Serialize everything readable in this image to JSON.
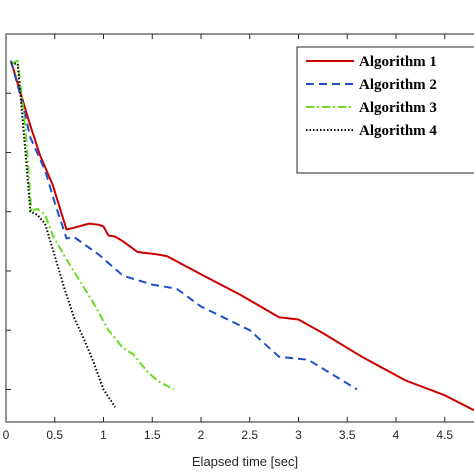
{
  "chart_data": {
    "type": "line",
    "title": "",
    "xlabel": "Elapsed time [sec]",
    "ylabel": "",
    "xlim": [
      0,
      4.8
    ],
    "x_ticks": [
      0,
      0.5,
      1,
      1.5,
      2,
      2.5,
      3,
      3.5,
      4,
      4.5
    ],
    "x_tick_labels": [
      "0",
      "0.5",
      "1",
      "1.5",
      "2",
      "2.5",
      "3",
      "3.5",
      "4",
      "4.5"
    ],
    "y_scale": "log",
    "ylim_decades": [
      -6,
      0
    ],
    "y_tick_decades": [
      -6,
      -5,
      -4,
      -3,
      -2,
      -1,
      0
    ],
    "grid": false,
    "legend_position": "top-right",
    "series": [
      {
        "name": "Algorithm 1",
        "color": "#cc0000",
        "dash": "solid",
        "points": [
          [
            0.05,
            -0.45
          ],
          [
            0.15,
            -1.0
          ],
          [
            0.25,
            -1.55
          ],
          [
            0.35,
            -2.05
          ],
          [
            0.48,
            -2.55
          ],
          [
            0.62,
            -3.3
          ],
          [
            0.7,
            -3.27
          ],
          [
            0.85,
            -3.2
          ],
          [
            0.95,
            -3.22
          ],
          [
            1.0,
            -3.25
          ],
          [
            1.05,
            -3.4
          ],
          [
            1.12,
            -3.42
          ],
          [
            1.2,
            -3.5
          ],
          [
            1.35,
            -3.68
          ],
          [
            1.55,
            -3.72
          ],
          [
            1.65,
            -3.75
          ],
          [
            2.05,
            -4.1
          ],
          [
            2.4,
            -4.4
          ],
          [
            2.8,
            -4.78
          ],
          [
            3.0,
            -4.82
          ],
          [
            3.25,
            -5.05
          ],
          [
            3.65,
            -5.45
          ],
          [
            4.1,
            -5.85
          ],
          [
            4.5,
            -6.1
          ],
          [
            4.8,
            -6.35
          ]
        ]
      },
      {
        "name": "Algorithm 2",
        "color": "#1f4fcc",
        "dash": "dashed",
        "points": [
          [
            0.05,
            -0.45
          ],
          [
            0.15,
            -1.05
          ],
          [
            0.25,
            -1.75
          ],
          [
            0.4,
            -2.3
          ],
          [
            0.5,
            -2.85
          ],
          [
            0.62,
            -3.45
          ],
          [
            0.7,
            -3.43
          ],
          [
            0.95,
            -3.72
          ],
          [
            1.2,
            -4.08
          ],
          [
            1.5,
            -4.23
          ],
          [
            1.75,
            -4.3
          ],
          [
            2.0,
            -4.6
          ],
          [
            2.5,
            -5.0
          ],
          [
            2.8,
            -5.45
          ],
          [
            3.1,
            -5.5
          ],
          [
            3.6,
            -6.0
          ]
        ]
      },
      {
        "name": "Algorithm 3",
        "color": "#66dd22",
        "dash": "dashdot",
        "points": [
          [
            0.06,
            -0.5
          ],
          [
            0.12,
            -0.45
          ],
          [
            0.2,
            -1.6
          ],
          [
            0.26,
            -3.0
          ],
          [
            0.32,
            -2.95
          ],
          [
            0.4,
            -3.05
          ],
          [
            0.48,
            -3.4
          ],
          [
            0.6,
            -3.75
          ],
          [
            0.75,
            -4.15
          ],
          [
            0.9,
            -4.55
          ],
          [
            1.05,
            -5.0
          ],
          [
            1.2,
            -5.3
          ],
          [
            1.3,
            -5.4
          ],
          [
            1.45,
            -5.7
          ],
          [
            1.55,
            -5.85
          ],
          [
            1.72,
            -6.0
          ]
        ]
      },
      {
        "name": "Algorithm 4",
        "color": "#000000",
        "dash": "dotted",
        "points": [
          [
            0.05,
            -0.5
          ],
          [
            0.12,
            -0.5
          ],
          [
            0.2,
            -2.0
          ],
          [
            0.25,
            -3.0
          ],
          [
            0.32,
            -3.05
          ],
          [
            0.4,
            -3.2
          ],
          [
            0.5,
            -3.75
          ],
          [
            0.6,
            -4.3
          ],
          [
            0.7,
            -4.8
          ],
          [
            0.8,
            -5.15
          ],
          [
            0.9,
            -5.55
          ],
          [
            1.0,
            -6.0
          ],
          [
            1.12,
            -6.3
          ]
        ]
      }
    ]
  }
}
